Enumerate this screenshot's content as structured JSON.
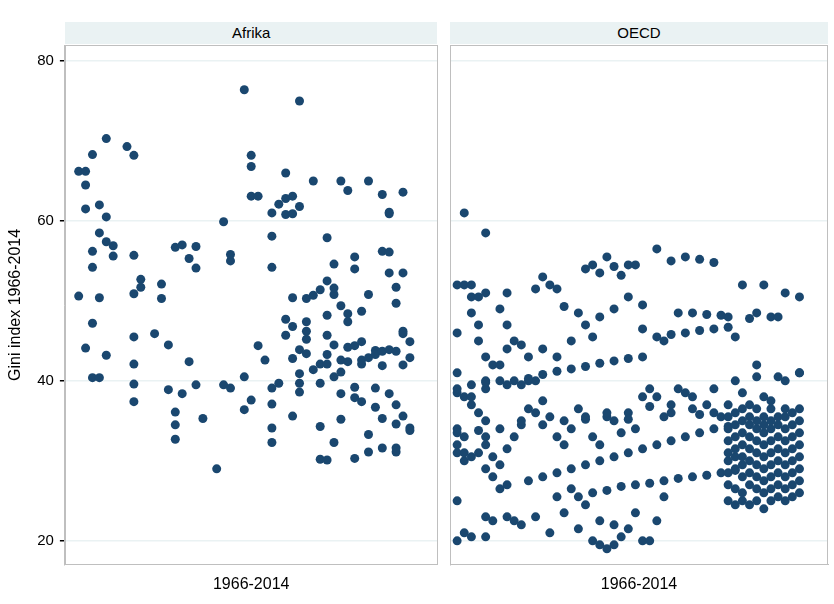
{
  "chart_data": [
    {
      "type": "scatter",
      "title": "Afrika",
      "y_label": "Gini index 1966-2014",
      "x_label": "1966-2014",
      "color": "#1a476f",
      "marker": "circle",
      "grid": true,
      "tick_labels": "y",
      "xlim": [
        1964,
        2018
      ],
      "ylim": [
        17,
        82
      ],
      "yticks": [
        20,
        40,
        60,
        80
      ],
      "x": [
        1966,
        1967,
        1967,
        1966,
        1967,
        1967,
        1968,
        1968,
        1968,
        1968,
        1969,
        1968,
        1969,
        1969,
        1969,
        1970,
        1970,
        1970,
        1970,
        1971,
        1971,
        1973,
        1974,
        1974,
        1974,
        1974,
        1974,
        1974,
        1974,
        1975,
        1975,
        1977,
        1978,
        1978,
        1979,
        1979,
        1980,
        1981,
        1983,
        1982,
        1983,
        1982,
        1981,
        1980,
        1980,
        1980,
        1984,
        1983,
        1986,
        1987,
        1988,
        1987,
        1988,
        1988,
        1990,
        1990,
        1990,
        1991,
        1991,
        1991,
        1991,
        1992,
        1992,
        1993,
        1994,
        1994,
        1994,
        1994,
        1994,
        1995,
        1994,
        1995,
        1994,
        1996,
        1996,
        1996,
        1996,
        1996,
        1997,
        1997,
        1997,
        1998,
        1997,
        1997,
        1997,
        1998,
        1998,
        1998,
        1999,
        1998,
        1998,
        1999,
        1999,
        1999,
        1999,
        2000,
        2000,
        2000,
        2001,
        2001,
        2001,
        2001,
        2001,
        2002,
        2002,
        2002,
        2002,
        2002,
        2002,
        2002,
        2003,
        2003,
        2003,
        2003,
        2003,
        2003,
        2004,
        2004,
        2004,
        2004,
        2004,
        2004,
        2005,
        2005,
        2005,
        2005,
        2005,
        2006,
        2006,
        2006,
        2006,
        2006,
        2006,
        2007,
        2007,
        2007,
        2007,
        2007,
        2008,
        2008,
        2008,
        2008,
        2008,
        2009,
        2009,
        2009,
        2009,
        2010,
        2010,
        2010,
        2010,
        2010,
        2010,
        2011,
        2011,
        2011,
        2011,
        2011,
        2011,
        2012,
        2012,
        2012,
        2012,
        2012,
        2012,
        2012,
        2013,
        2013,
        2013,
        2013,
        2013,
        2013,
        2014,
        2014,
        2014,
        2014
      ],
      "values": [
        66.2,
        66.2,
        64.5,
        50.6,
        61.5,
        44.1,
        68.3,
        56.2,
        47.2,
        40.4,
        40.4,
        54.2,
        50.4,
        58.5,
        62,
        70.3,
        57.4,
        60.5,
        43.2,
        56.9,
        55.6,
        69.3,
        68.2,
        55.7,
        50.9,
        45.5,
        42.1,
        39.6,
        37.4,
        52.7,
        51.7,
        45.9,
        52.1,
        50.3,
        44.5,
        38.9,
        56.7,
        57,
        54.1,
        55.3,
        56.8,
        42.4,
        38.4,
        36.1,
        34.5,
        32.7,
        35.3,
        39.5,
        29,
        39.5,
        39.1,
        59.9,
        55,
        55.8,
        76.4,
        40.5,
        36.4,
        37.6,
        66.8,
        68.2,
        63.1,
        63.1,
        44.4,
        42.6,
        61,
        54.2,
        39.1,
        32.3,
        37.1,
        39.7,
        34.1,
        62.1,
        58.1,
        66,
        62.8,
        60.8,
        47.7,
        45.7,
        42.8,
        35.6,
        63.1,
        75,
        60.9,
        50.4,
        46.8,
        39.7,
        43.9,
        61.8,
        47.4,
        40.9,
        38.6,
        45.2,
        50.3,
        46.2,
        43.4,
        65,
        41.4,
        50.7,
        42.1,
        39.7,
        34.3,
        51.4,
        30.2,
        48.2,
        45.7,
        43.3,
        42.1,
        30.1,
        57.9,
        52.5,
        50.8,
        44.5,
        40.5,
        32.3,
        54.6,
        51.6,
        49.4,
        41.1,
        38.4,
        35.2,
        65,
        42.6,
        48.4,
        44.2,
        63.8,
        47.4,
        42.4,
        37.9,
        30.3,
        55.5,
        54,
        44.4,
        39.2,
        42.1,
        48.7,
        44.9,
        42.6,
        37.4,
        33.3,
        65,
        31.1,
        50.8,
        42.9,
        43.8,
        39.1,
        36.7,
        43.3,
        56.2,
        41.9,
        35.3,
        63.3,
        43.7,
        31.6,
        53.5,
        60.9,
        61.1,
        43.9,
        38.4,
        56.1,
        49.7,
        51.7,
        31.1,
        43.7,
        34.6,
        37,
        31.6,
        46.2,
        63.6,
        53.5,
        45.9,
        42,
        35.6,
        33.8,
        44.9,
        42.9,
        34.1
      ]
    },
    {
      "type": "scatter",
      "title": "OECD",
      "x_label": "1966-2014",
      "color": "#1a476f",
      "marker": "circle",
      "grid": true,
      "tick_labels": false,
      "xlim": [
        1965,
        2018
      ],
      "ylim": [
        17,
        82
      ],
      "yticks": [
        20,
        40,
        60,
        80
      ],
      "x": [
        1966,
        1967,
        1966,
        1968,
        1969,
        1970,
        1966,
        1966,
        1967,
        1968,
        1966,
        1967,
        1966,
        1966,
        1967,
        1966,
        1966,
        1967,
        1970,
        1968,
        1968,
        1969,
        1969,
        1970,
        1971,
        1970,
        1970,
        1968,
        1969,
        1970,
        1970,
        1969,
        1970,
        1971,
        1970,
        1971,
        1970,
        1972,
        1973,
        1973,
        1974,
        1972,
        1973,
        1973,
        1974,
        1972,
        1973,
        1975,
        1976,
        1977,
        1966,
        1968,
        1970,
        1972,
        1974,
        1976,
        1978,
        1980,
        1982,
        1984,
        1986,
        1988,
        1990,
        1992,
        1994,
        1996,
        1998,
        2000,
        2002,
        2004,
        1966,
        1969,
        1972,
        1975,
        1978,
        1981,
        1984,
        1987,
        1990,
        1993,
        1996,
        1999,
        2002,
        2005,
        2008,
        2011,
        2014,
        1976,
        1978,
        1980,
        1982,
        1984,
        1986,
        1988,
        1990,
        1992,
        1994,
        1996,
        1998,
        2000,
        2002,
        2004,
        1983,
        1985,
        1987,
        1989,
        1991,
        1993,
        1995,
        1997,
        1999,
        2001,
        2003,
        2005,
        1984,
        1985,
        1986,
        1987,
        1988,
        1989,
        1990,
        1991,
        1994,
        1996,
        1998,
        2000,
        2002,
        2004,
        2006,
        2008,
        2010,
        2012,
        2014,
        1980,
        1979,
        1978,
        1977,
        1981,
        1983,
        1985,
        1992,
        1995,
        1997,
        1999,
        2001,
        2003,
        2005,
        2007,
        2009,
        2011,
        1967,
        1968,
        1975,
        1977,
        1979,
        1981,
        1983,
        1985,
        1986,
        1987,
        1988,
        1989,
        1990,
        1992,
        1993,
        1980,
        1982,
        1984,
        1986,
        1988,
        1991,
        1994,
        1995,
        1967,
        1968,
        1970,
        1971,
        1972,
        1973,
        1974,
        1975,
        1976,
        1977,
        1978,
        1979,
        1980,
        1981,
        1982,
        1983,
        1984,
        1985,
        1986,
        1987,
        1988,
        1989,
        1990,
        1991,
        1992,
        1993,
        1994,
        1995,
        1996,
        1997,
        1998,
        1999,
        2000,
        2001,
        2002,
        2003,
        1973,
        1975,
        1976,
        1978,
        1980,
        1982,
        1984,
        1986,
        1988,
        1990,
        1992,
        2004,
        2004,
        2004,
        2004,
        2004,
        2004,
        2004,
        2004,
        2004,
        2005,
        2005,
        2005,
        2005,
        2005,
        2005,
        2005,
        2005,
        2006,
        2006,
        2006,
        2006,
        2006,
        2006,
        2006,
        2006,
        2006,
        2006,
        2007,
        2007,
        2007,
        2007,
        2007,
        2007,
        2007,
        2007,
        2007,
        2008,
        2008,
        2008,
        2008,
        2008,
        2008,
        2008,
        2008,
        2008,
        2008,
        2009,
        2009,
        2009,
        2009,
        2009,
        2009,
        2009,
        2009,
        2009,
        2009,
        2010,
        2010,
        2010,
        2010,
        2010,
        2010,
        2010,
        2010,
        2010,
        2010,
        2011,
        2011,
        2011,
        2011,
        2011,
        2011,
        2011,
        2011,
        2012,
        2012,
        2012,
        2012,
        2012,
        2012,
        2012,
        2012,
        2012,
        2012,
        2013,
        2013,
        2013,
        2013,
        2013,
        2013,
        2013,
        2013,
        2014,
        2014,
        2014,
        2014,
        2014,
        2014,
        2014,
        2014,
        2014
      ],
      "values": [
        52,
        52,
        46,
        50.5,
        50.5,
        51,
        41,
        38.5,
        38,
        38,
        34,
        33,
        32,
        31,
        30,
        25,
        20,
        61,
        58.5,
        52,
        48.5,
        47,
        45,
        43,
        42,
        40,
        39,
        37,
        36,
        35,
        33,
        31,
        29,
        28,
        23,
        22.5,
        20.5,
        26.5,
        27,
        23,
        22.5,
        49,
        51,
        47,
        45,
        42,
        39.5,
        39.5,
        40,
        40,
        39,
        39.5,
        39.8,
        40,
        40,
        40.3,
        40.8,
        41.2,
        41.5,
        41.8,
        42.2,
        42.5,
        42.8,
        43,
        45.5,
        45.8,
        46,
        46.3,
        46.5,
        46.7,
        33.5,
        33.8,
        34,
        34.5,
        34.5,
        35,
        35.2,
        35.5,
        36,
        36.8,
        37,
        38,
        39,
        40,
        40.5,
        40.5,
        41,
        27.5,
        28,
        28.5,
        29,
        29.5,
        30,
        30.5,
        31,
        31.5,
        32,
        32.5,
        33,
        33.5,
        34,
        34.3,
        25.5,
        26,
        26.3,
        26.8,
        27,
        27.2,
        27.5,
        27.8,
        28,
        28.2,
        28.5,
        28.8,
        54,
        54.5,
        53.5,
        55.5,
        54.3,
        53.2,
        54.5,
        54.5,
        56.5,
        55,
        55.5,
        55.2,
        54.8,
        48,
        52,
        48.5,
        48,
        51,
        50.5,
        51.5,
        52,
        53,
        51.5,
        49.3,
        48.5,
        45.5,
        46.5,
        45,
        48.5,
        48.5,
        48.3,
        48.2,
        45.5,
        47.8,
        52,
        48,
        21,
        20.5,
        22,
        23,
        21,
        23.5,
        21.5,
        20,
        19.5,
        19,
        19.5,
        20.5,
        21.5,
        20,
        20,
        25.5,
        26.5,
        24.5,
        22.5,
        22,
        23.5,
        22.5,
        25.5,
        31,
        30.5,
        32,
        30.5,
        29.5,
        31.5,
        33,
        35,
        36.5,
        36,
        37.5,
        35.5,
        33,
        32,
        34,
        36.5,
        35.5,
        33,
        32,
        36,
        35,
        33.5,
        35.2,
        34,
        38,
        39,
        38,
        35.5,
        36,
        39,
        38.5,
        36.5,
        35.8,
        37,
        36,
        35.5,
        44,
        44.5,
        43,
        44,
        43,
        45,
        47,
        48,
        49,
        50.5,
        49.5,
        25,
        27,
        28.5,
        30,
        31,
        32.5,
        34,
        35.5,
        37,
        24.5,
        26.5,
        29,
        30.5,
        31.5,
        33,
        34.5,
        36,
        25,
        26,
        28,
        29.5,
        30.5,
        32,
        33.5,
        35,
        36.5,
        38.5,
        24.5,
        27,
        28.5,
        30,
        31.5,
        33,
        34.5,
        35.5,
        37,
        25,
        26.5,
        28,
        29.5,
        31,
        32.5,
        34,
        35,
        36.5,
        42,
        24,
        26,
        27.5,
        29,
        30.5,
        32,
        33.5,
        34.5,
        35.5,
        38,
        25,
        26.5,
        28,
        29.5,
        31,
        32.5,
        34,
        35,
        36.5,
        37.5,
        25.5,
        27,
        28.5,
        30,
        31.5,
        33,
        34.5,
        35.5,
        25,
        26.5,
        28,
        29.5,
        31,
        32.5,
        34,
        35.5,
        36.5,
        40,
        25.5,
        27,
        28.5,
        30,
        31.5,
        33,
        34.5,
        36,
        26,
        27.5,
        29,
        30.5,
        32,
        33.5,
        35,
        36.5,
        41
      ]
    }
  ]
}
